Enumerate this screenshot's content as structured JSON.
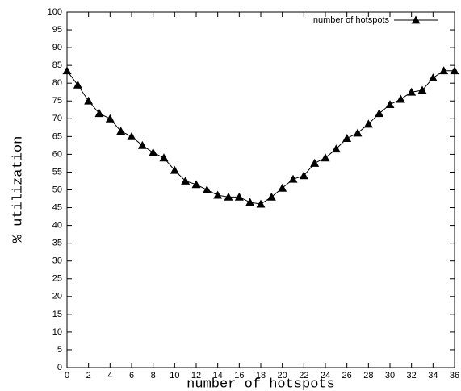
{
  "chart_data": {
    "type": "line",
    "x_label": "number of hotspots",
    "y_label": "% utilization",
    "x": [
      0,
      1,
      2,
      3,
      4,
      5,
      6,
      7,
      8,
      9,
      10,
      11,
      12,
      13,
      14,
      15,
      16,
      17,
      18,
      19,
      20,
      21,
      22,
      23,
      24,
      25,
      26,
      27,
      28,
      29,
      30,
      31,
      32,
      33,
      34,
      35,
      36
    ],
    "series": [
      {
        "name": "number of hotspots",
        "color": "#000000",
        "values": [
          83.5,
          79.5,
          75,
          71.5,
          70,
          66.5,
          65,
          62.5,
          60.5,
          59,
          55.5,
          52.5,
          51.5,
          50,
          48.5,
          48,
          48,
          46.5,
          46,
          48,
          50.5,
          53,
          54,
          57.5,
          59,
          61.5,
          64.5,
          66,
          68.5,
          71.5,
          74,
          75.5,
          77.5,
          78,
          81.5,
          83.5,
          83.5
        ]
      }
    ],
    "xlim": [
      0,
      36
    ],
    "xticks": [
      0,
      2,
      4,
      6,
      8,
      10,
      12,
      14,
      16,
      18,
      20,
      22,
      24,
      26,
      28,
      30,
      32,
      34,
      36
    ],
    "ylim": [
      0,
      100
    ],
    "yticks": [
      0,
      5,
      10,
      15,
      20,
      25,
      30,
      35,
      40,
      45,
      50,
      55,
      60,
      65,
      70,
      75,
      80,
      85,
      90,
      95,
      100
    ],
    "legend": "top-right",
    "marker": "triangle"
  }
}
